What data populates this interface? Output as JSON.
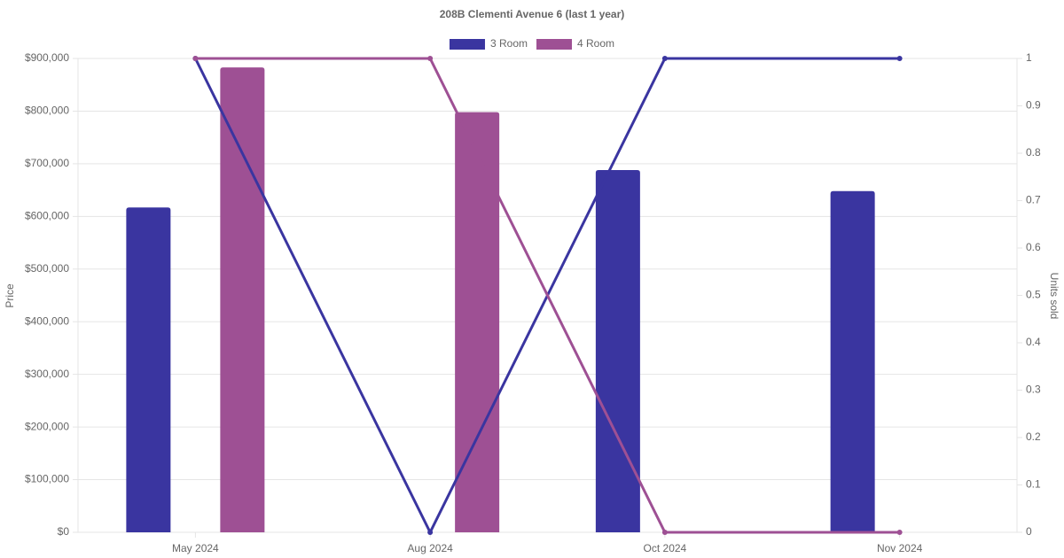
{
  "chart_data": {
    "type": "bar-line",
    "title": "208B Clementi Avenue 6 (last 1 year)",
    "y_label": "Price",
    "y2_label": "Units sold",
    "categories": [
      "May 2024",
      "Aug 2024",
      "Oct 2024",
      "Nov 2024"
    ],
    "ylim": [
      0,
      900000
    ],
    "yticks": [
      {
        "value": 0,
        "label": "$0"
      },
      {
        "value": 100000,
        "label": "$100,000"
      },
      {
        "value": 200000,
        "label": "$200,000"
      },
      {
        "value": 300000,
        "label": "$300,000"
      },
      {
        "value": 400000,
        "label": "$400,000"
      },
      {
        "value": 500000,
        "label": "$500,000"
      },
      {
        "value": 600000,
        "label": "$600,000"
      },
      {
        "value": 700000,
        "label": "$700,000"
      },
      {
        "value": 800000,
        "label": "$800,000"
      },
      {
        "value": 900000,
        "label": "$900,000"
      }
    ],
    "y2lim": [
      0,
      1
    ],
    "y2ticks": [
      0,
      0.1,
      0.2,
      0.3,
      0.4,
      0.5,
      0.6,
      0.7,
      0.8,
      0.9,
      1
    ],
    "grid": true,
    "legend": "top",
    "series": [
      {
        "name": "3 Room",
        "type": "bar",
        "color": "#3a35a0",
        "values": [
          617000,
          null,
          688000,
          648000
        ]
      },
      {
        "name": "4 Room",
        "type": "bar",
        "color": "#9e5094",
        "values": [
          883000,
          798000,
          null,
          null
        ]
      },
      {
        "type": "line",
        "axis": "y2",
        "color": "#3a35a0",
        "values": [
          1,
          0,
          1,
          1
        ]
      },
      {
        "type": "line",
        "axis": "y2",
        "color": "#9e5094",
        "values": [
          1,
          1,
          0,
          0
        ]
      }
    ]
  }
}
